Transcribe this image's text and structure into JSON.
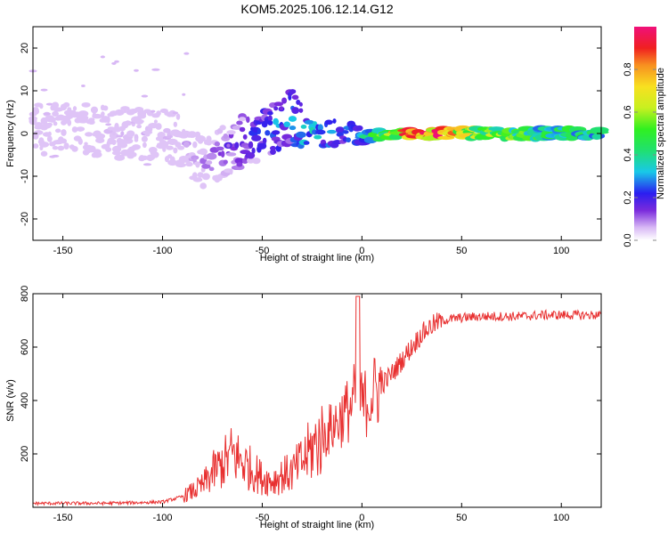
{
  "figure": {
    "title": "KOM5.2025.106.12.14.G12"
  },
  "chart_data": [
    {
      "type": "heatmap",
      "title": "KOM5.2025.106.12.14.G12",
      "xlabel": "Height of straight line (km)",
      "ylabel": "Frequency (Hz)",
      "xlim": [
        -165,
        120
      ],
      "ylim": [
        -25,
        25
      ],
      "xticks": [
        -150,
        -100,
        -50,
        0,
        50,
        100
      ],
      "yticks": [
        -20,
        -10,
        0,
        10,
        20
      ],
      "colorbar": {
        "label": "Normalized spectral amplitude",
        "range": [
          0.0,
          1.0
        ],
        "ticks": [
          0.0,
          0.2,
          0.4,
          0.6,
          0.8
        ],
        "colormap": "rainbow"
      },
      "trace": {
        "note_x": [
          -160,
          -140,
          -120,
          -100,
          -90,
          -80,
          -70,
          -60,
          -50,
          -40,
          -35,
          -30,
          -20,
          -10,
          0,
          10,
          20,
          40,
          60,
          80,
          100,
          120
        ],
        "center_freq": [
          1,
          1,
          0,
          0,
          -2,
          -7,
          -4,
          -2,
          0,
          3,
          4,
          1,
          0,
          0,
          -1,
          0,
          0,
          0,
          0,
          0,
          0,
          0
        ],
        "amplitude": [
          0.05,
          0.05,
          0.06,
          0.07,
          0.08,
          0.1,
          0.15,
          0.2,
          0.25,
          0.3,
          0.3,
          0.35,
          0.3,
          0.25,
          0.3,
          0.5,
          0.8,
          0.95,
          0.6,
          0.5,
          0.45,
          0.4
        ]
      },
      "grid": false
    },
    {
      "type": "line",
      "xlabel": "Height of straight line (km)",
      "ylabel": "SNR (v/v)",
      "xlim": [
        -165,
        120
      ],
      "ylim": [
        0,
        800
      ],
      "xticks": [
        -150,
        -100,
        -50,
        0,
        50,
        100
      ],
      "yticks": [
        200,
        400,
        600,
        800
      ],
      "series": [
        {
          "color": "#e83030",
          "x": [
            -165,
            -150,
            -130,
            -110,
            -100,
            -90,
            -80,
            -75,
            -70,
            -65,
            -60,
            -55,
            -50,
            -45,
            -40,
            -35,
            -30,
            -25,
            -20,
            -15,
            -10,
            -5,
            -2,
            0,
            5,
            10,
            15,
            20,
            25,
            30,
            35,
            40,
            50,
            60,
            70,
            80,
            90,
            100,
            110,
            120
          ],
          "y": [
            15,
            15,
            15,
            18,
            20,
            40,
            80,
            130,
            160,
            200,
            170,
            140,
            110,
            100,
            120,
            130,
            170,
            220,
            260,
            300,
            340,
            380,
            450,
            380,
            420,
            460,
            500,
            550,
            600,
            650,
            680,
            700,
            710,
            715,
            715,
            715,
            720,
            720,
            720,
            720
          ]
        }
      ],
      "grid": false
    }
  ]
}
